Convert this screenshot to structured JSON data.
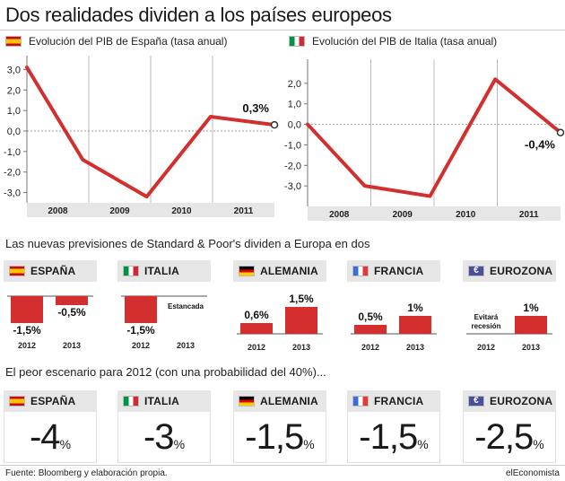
{
  "title": "Dos realidades dividen a los países europeos",
  "charts": {
    "spain": {
      "heading": "Evolución del PIB de España (tasa anual)",
      "callout": "0,3%"
    },
    "italy": {
      "heading": "Evolución del PIB de Italia (tasa anual)",
      "callout": "-0,4%"
    }
  },
  "chart_data": [
    {
      "type": "line",
      "title": "Evolución del PIB de España (tasa anual)",
      "x": [
        2007.9,
        2008.6,
        2009.4,
        2010.2,
        2011.0
      ],
      "x_ticks": [
        "2008",
        "2009",
        "2010",
        "2011"
      ],
      "values": [
        3.1,
        -1.4,
        -3.2,
        0.7,
        0.3
      ],
      "ylim": [
        -3.5,
        3.5
      ],
      "y_ticks": [
        "3,0",
        "2,0",
        "1,0",
        "0,0",
        "-1,0",
        "-2,0",
        "-3,0"
      ],
      "annotation": "0,3%",
      "color": "#d32f2f",
      "grid": true
    },
    {
      "type": "line",
      "title": "Evolución del PIB de Italia (tasa anual)",
      "x": [
        2007.9,
        2008.6,
        2009.4,
        2010.2,
        2011.0
      ],
      "x_ticks": [
        "2008",
        "2009",
        "2010",
        "2011"
      ],
      "values": [
        0.0,
        -3.0,
        -3.5,
        2.2,
        -0.4
      ],
      "ylim": [
        -4.0,
        3.0
      ],
      "y_ticks": [
        "2,0",
        "1,0",
        "0,0",
        "-1,0",
        "-2,0",
        "-3,0"
      ],
      "annotation": "-0,4%",
      "color": "#d32f2f",
      "grid": true
    },
    {
      "type": "bar",
      "title": "Las nuevas previsiones de Standard & Poor's dividen a Europa en dos",
      "groups": [
        {
          "name": "ESPAÑA",
          "categories": [
            "2012",
            "2013"
          ],
          "values": [
            -1.5,
            -0.5
          ],
          "labels": [
            "-1,5%",
            "-0,5%"
          ]
        },
        {
          "name": "ITALIA",
          "categories": [
            "2012",
            "2013"
          ],
          "values": [
            -1.5,
            0
          ],
          "labels": [
            "-1,5%",
            "Estancada"
          ]
        },
        {
          "name": "ALEMANIA",
          "categories": [
            "2012",
            "2013"
          ],
          "values": [
            0.6,
            1.5
          ],
          "labels": [
            "0,6%",
            "1,5%"
          ]
        },
        {
          "name": "FRANCIA",
          "categories": [
            "2012",
            "2013"
          ],
          "values": [
            0.5,
            1
          ],
          "labels": [
            "0,5%",
            "1%"
          ]
        },
        {
          "name": "EUROZONA",
          "categories": [
            "2012",
            "2013"
          ],
          "values": [
            0,
            1
          ],
          "labels": [
            "Evitará recesión",
            "1%"
          ]
        }
      ],
      "color": "#d32f2f"
    }
  ],
  "forecast_section": "Las nuevas previsiones de Standard & Poor's dividen a Europa en dos",
  "scenario_section": "El peor escenario para 2012 (con una probabilidad del 40%)...",
  "countries": [
    {
      "name": "ESPAÑA",
      "flag": "es"
    },
    {
      "name": "ITALIA",
      "flag": "it"
    },
    {
      "name": "ALEMANIA",
      "flag": "de"
    },
    {
      "name": "FRANCIA",
      "flag": "fr"
    },
    {
      "name": "EUROZONA",
      "flag": "eu",
      "flag_text": "€"
    }
  ],
  "worst_case": [
    {
      "value": "-4",
      "unit": "%"
    },
    {
      "value": "-3",
      "unit": "%"
    },
    {
      "value": "-1,5",
      "unit": "%"
    },
    {
      "value": "-1,5",
      "unit": "%"
    },
    {
      "value": "-2,5",
      "unit": "%"
    }
  ],
  "footer": {
    "source": "Fuente: Bloomberg y elaboración propia.",
    "brand": "elEconomista"
  }
}
